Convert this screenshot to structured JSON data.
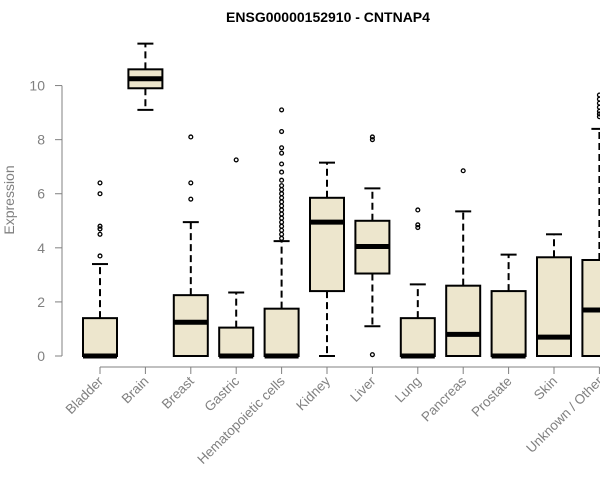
{
  "chart_data": {
    "type": "boxplot",
    "title": "ENSG00000152910 - CNTNAP4",
    "xlabel": "",
    "ylabel": "Expression",
    "ylim": [
      0,
      11.5
    ],
    "yticks": [
      0,
      2,
      4,
      6,
      8,
      10
    ],
    "colors": {
      "box_fill": "#ede6cd",
      "box_stroke": "#000000",
      "axis": "#808080"
    },
    "categories": [
      "Bladder",
      "Brain",
      "Breast",
      "Gastric",
      "Hematopoietic cells",
      "Kidney",
      "Liver",
      "Lung",
      "Pancreas",
      "Prostate",
      "Skin",
      "Unknown / Other"
    ],
    "boxes": [
      {
        "name": "Bladder",
        "min": 0,
        "q1": 0,
        "median": 0,
        "q3": 1.4,
        "max": 3.4,
        "outliers": [
          3.7,
          4.5,
          4.7,
          4.8,
          6.0,
          6.4
        ]
      },
      {
        "name": "Brain",
        "min": 9.1,
        "q1": 9.9,
        "median": 10.25,
        "q3": 10.6,
        "max": 11.55,
        "outliers": []
      },
      {
        "name": "Breast",
        "min": 0,
        "q1": 0,
        "median": 1.25,
        "q3": 2.25,
        "max": 4.95,
        "outliers": [
          5.8,
          6.4,
          8.1
        ]
      },
      {
        "name": "Gastric",
        "min": 0,
        "q1": 0,
        "median": 0,
        "q3": 1.05,
        "max": 2.35,
        "outliers": [
          7.25
        ]
      },
      {
        "name": "Hematopoietic cells",
        "min": 0,
        "q1": 0,
        "median": 0,
        "q3": 1.75,
        "max": 4.25,
        "outliers": [
          4.35,
          4.5,
          4.65,
          4.8,
          4.95,
          5.1,
          5.25,
          5.4,
          5.55,
          5.7,
          5.85,
          6.0,
          6.15,
          6.3,
          6.5,
          6.8,
          7.1,
          7.5,
          7.7,
          8.3,
          9.1
        ]
      },
      {
        "name": "Kidney",
        "min": 0,
        "q1": 2.4,
        "median": 4.95,
        "q3": 5.85,
        "max": 7.15,
        "outliers": []
      },
      {
        "name": "Liver",
        "min": 1.1,
        "q1": 3.05,
        "median": 4.05,
        "q3": 5.0,
        "max": 6.2,
        "outliers": [
          0.05,
          8.0,
          8.1
        ]
      },
      {
        "name": "Lung",
        "min": 0,
        "q1": 0,
        "median": 0,
        "q3": 1.4,
        "max": 2.65,
        "outliers": [
          4.75,
          4.85,
          5.4
        ]
      },
      {
        "name": "Pancreas",
        "min": 0,
        "q1": 0,
        "median": 0.8,
        "q3": 2.6,
        "max": 5.35,
        "outliers": [
          6.85
        ]
      },
      {
        "name": "Prostate",
        "min": 0,
        "q1": 0,
        "median": 0,
        "q3": 2.4,
        "max": 3.75,
        "outliers": []
      },
      {
        "name": "Skin",
        "min": 0,
        "q1": 0,
        "median": 0.7,
        "q3": 3.65,
        "max": 4.5,
        "outliers": []
      },
      {
        "name": "Unknown / Other",
        "min": 0,
        "q1": 0,
        "median": 1.7,
        "q3": 3.55,
        "max": 8.4,
        "outliers": [
          8.85,
          8.95,
          9.05,
          9.2,
          9.35,
          9.5,
          9.65
        ]
      }
    ]
  }
}
